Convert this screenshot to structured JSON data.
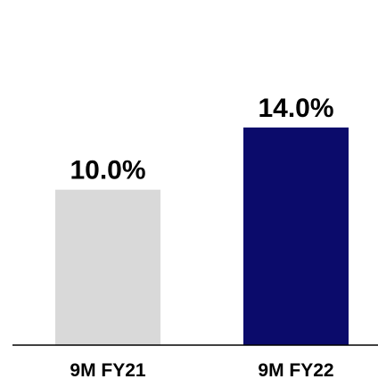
{
  "chart_data": {
    "type": "bar",
    "categories": [
      "9M FY21",
      "9M FY22"
    ],
    "values": [
      10.0,
      14.0
    ],
    "value_labels": [
      "10.0%",
      "14.0%"
    ],
    "tick_labels": [
      "9M FY21",
      "9M FY22"
    ],
    "colors": [
      "#d9d9d9",
      "#0b0b6b"
    ],
    "axis_color": "#000000",
    "ylim": [
      0,
      14.0
    ],
    "grid": false,
    "legend": "none"
  }
}
